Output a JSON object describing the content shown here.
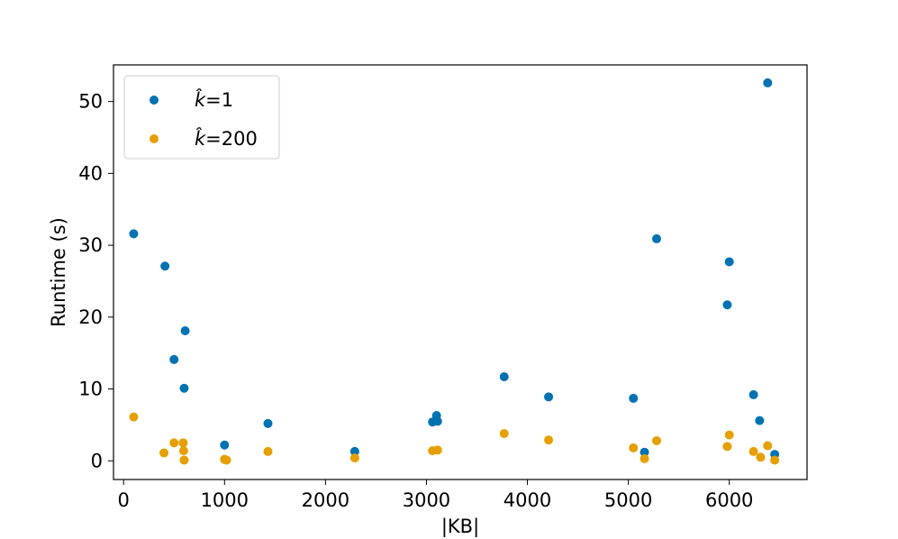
{
  "chart_data": {
    "type": "scatter",
    "title": "",
    "xlabel": "|KB|",
    "ylabel": "Runtime (s)",
    "xlim": [
      -100,
      6770
    ],
    "ylim": [
      -2.6,
      55.1
    ],
    "x_ticks": [
      0,
      1000,
      2000,
      3000,
      4000,
      5000,
      6000
    ],
    "y_ticks": [
      0,
      10,
      20,
      30,
      40,
      50
    ],
    "grid": false,
    "legend_position": "top-left",
    "series": [
      {
        "name": "k̂=1",
        "legend_var": "k̂",
        "legend_value": "=1",
        "color": "#0072b2",
        "points": [
          [
            100,
            31.6
          ],
          [
            410,
            27.1
          ],
          [
            500,
            14.1
          ],
          [
            600,
            10.1
          ],
          [
            610,
            18.1
          ],
          [
            1000,
            2.2
          ],
          [
            1430,
            5.2
          ],
          [
            2290,
            1.3
          ],
          [
            3060,
            5.4
          ],
          [
            3100,
            6.3
          ],
          [
            3110,
            5.5
          ],
          [
            3770,
            11.7
          ],
          [
            4210,
            8.9
          ],
          [
            5050,
            8.7
          ],
          [
            5160,
            1.2
          ],
          [
            5280,
            30.9
          ],
          [
            5980,
            21.7
          ],
          [
            6000,
            27.7
          ],
          [
            6240,
            9.2
          ],
          [
            6300,
            5.6
          ],
          [
            6380,
            52.6
          ],
          [
            6450,
            0.9
          ]
        ]
      },
      {
        "name": "k̂=200",
        "legend_var": "k̂",
        "legend_value": "=200",
        "color": "#e69f00",
        "points": [
          [
            100,
            6.1
          ],
          [
            400,
            1.1
          ],
          [
            500,
            2.5
          ],
          [
            590,
            2.5
          ],
          [
            595,
            1.4
          ],
          [
            600,
            0.1
          ],
          [
            1000,
            0.2
          ],
          [
            1020,
            0.1
          ],
          [
            1430,
            1.3
          ],
          [
            2290,
            0.4
          ],
          [
            3060,
            1.4
          ],
          [
            3110,
            1.5
          ],
          [
            3770,
            3.8
          ],
          [
            4210,
            2.9
          ],
          [
            5050,
            1.8
          ],
          [
            5160,
            0.3
          ],
          [
            5280,
            2.8
          ],
          [
            5980,
            2.0
          ],
          [
            6000,
            3.6
          ],
          [
            6240,
            1.3
          ],
          [
            6310,
            0.5
          ],
          [
            6380,
            2.1
          ],
          [
            6450,
            0.1
          ]
        ]
      }
    ]
  }
}
